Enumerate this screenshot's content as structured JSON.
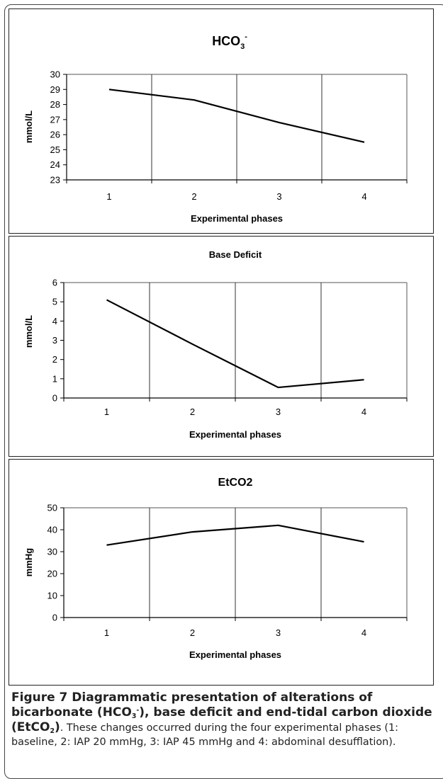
{
  "chart_data": [
    {
      "type": "line",
      "title": "HCO3-",
      "title_base": "HCO",
      "title_sub": "3",
      "title_sup": "-",
      "xlabel": "Experimental phases",
      "ylabel": "mmol/L",
      "categories": [
        "1",
        "2",
        "3",
        "4"
      ],
      "ylim": [
        23,
        30
      ],
      "yticks": [
        23,
        24,
        25,
        26,
        27,
        28,
        29,
        30
      ],
      "grid": "vertical",
      "series": [
        {
          "values": [
            29.0,
            28.3,
            26.8,
            25.5
          ]
        }
      ],
      "line_color": "#000000"
    },
    {
      "type": "line",
      "title": "Base Deficit",
      "xlabel": "Experimental phases",
      "ylabel": "mmol/L",
      "categories": [
        "1",
        "2",
        "3",
        "4"
      ],
      "ylim": [
        0,
        6
      ],
      "yticks": [
        0,
        1,
        2,
        3,
        4,
        5,
        6
      ],
      "grid": "vertical",
      "series": [
        {
          "values": [
            5.1,
            2.8,
            0.55,
            0.95
          ]
        }
      ],
      "line_color": "#000000"
    },
    {
      "type": "line",
      "title": "EtCO2",
      "xlabel": "Experimental phases",
      "ylabel": "mmHg",
      "categories": [
        "1",
        "2",
        "3",
        "4"
      ],
      "ylim": [
        0,
        50
      ],
      "yticks": [
        0,
        10,
        20,
        30,
        40,
        50
      ],
      "grid": "vertical",
      "series": [
        {
          "values": [
            33,
            39,
            42,
            34.5
          ]
        }
      ],
      "line_color": "#000000"
    }
  ],
  "caption": {
    "figure_label": "Figure 7",
    "bold_text_1": " Diagrammatic presentation of alterations of bicarbonate (HCO",
    "bold_sub_1": "3",
    "bold_sup_1": "-",
    "bold_text_2": "), base deficit and end-tidal carbon dioxide (EtCO",
    "bold_sub_2": "2",
    "bold_text_3": ")",
    "body_text": ". These changes occurred during the four experimental phases (1: baseline, 2: IAP 20 mmHg, 3: IAP 45 mmHg and 4: abdominal desufflation)."
  }
}
